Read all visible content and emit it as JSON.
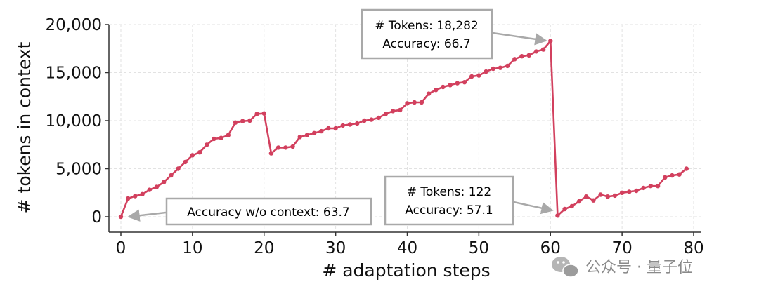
{
  "chart_data": {
    "type": "line",
    "xlabel": "# adaptation steps",
    "ylabel": "# tokens in context",
    "xlim": [
      -1,
      81
    ],
    "ylim": [
      -1800,
      20500
    ],
    "xticks": [
      0,
      10,
      20,
      30,
      40,
      50,
      60,
      70,
      80
    ],
    "yticks": [
      0,
      5000,
      10000,
      15000,
      20000
    ],
    "xtick_labels": [
      "0",
      "10",
      "20",
      "30",
      "40",
      "50",
      "60",
      "70",
      "80"
    ],
    "ytick_labels": [
      "0",
      "5,000",
      "10,000",
      "15,000",
      "20,000"
    ],
    "grid": true,
    "color": "#d2405e",
    "series": [
      {
        "x": [
          0,
          1,
          2,
          3,
          4,
          5,
          6,
          7,
          8,
          9,
          10,
          11,
          12,
          13,
          14,
          15,
          16,
          17,
          18,
          19,
          20,
          21,
          22,
          23,
          24,
          25,
          26,
          27,
          28,
          29,
          30,
          31,
          32,
          33,
          34,
          35,
          36,
          37,
          38,
          39,
          40,
          41,
          42,
          43,
          44,
          45,
          46,
          47,
          48,
          49,
          50,
          51,
          52,
          53,
          54,
          55,
          56,
          57,
          58,
          59,
          60,
          61,
          62,
          63,
          64,
          65,
          66,
          67,
          68,
          69,
          70,
          71,
          72,
          73,
          74,
          75,
          76,
          77,
          78,
          79
        ],
        "y": [
          0,
          1900,
          2150,
          2350,
          2800,
          3100,
          3600,
          4300,
          5000,
          5700,
          6400,
          6700,
          7500,
          8100,
          8200,
          8500,
          9800,
          9950,
          10000,
          10700,
          10750,
          6600,
          7200,
          7200,
          7300,
          8300,
          8500,
          8700,
          8900,
          9200,
          9200,
          9500,
          9600,
          9700,
          10000,
          10100,
          10300,
          10700,
          11000,
          11100,
          11800,
          11900,
          11900,
          12800,
          13200,
          13500,
          13700,
          13900,
          14000,
          14600,
          14700,
          15100,
          15400,
          15500,
          15700,
          16400,
          16700,
          16800,
          17200,
          17400,
          18282,
          122,
          800,
          1100,
          1600,
          2100,
          1700,
          2300,
          2100,
          2200,
          2500,
          2600,
          2700,
          3000,
          3200,
          3200,
          4100,
          4300,
          4400,
          5000
        ]
      }
    ],
    "annotations": [
      {
        "text": "Accuracy w/o context: 63.7",
        "target_x": 0,
        "target_y": 0
      },
      {
        "lines": [
          "# Tokens: 18,282",
          "Accuracy: 66.7"
        ],
        "target_x": 60,
        "target_y": 18282
      },
      {
        "lines": [
          "# Tokens: 122",
          "Accuracy: 57.1"
        ],
        "target_x": 61,
        "target_y": 122
      }
    ]
  },
  "watermark": {
    "text": "公众号 · 量子位",
    "icon": "wechat-icon"
  }
}
